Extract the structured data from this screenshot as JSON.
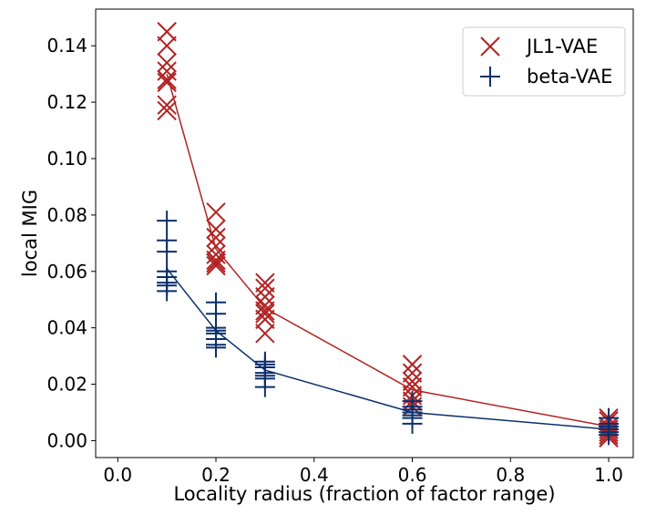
{
  "chart_data": {
    "type": "scatter",
    "xlabel": "Locality radius (fraction of factor range)",
    "ylabel": "local MIG",
    "xlim": [
      -0.045,
      1.05
    ],
    "ylim": [
      -0.006,
      0.153
    ],
    "xticks": [
      0.0,
      0.2,
      0.4,
      0.6,
      0.8,
      1.0
    ],
    "xtick_labels": [
      "0.0",
      "0.2",
      "0.4",
      "0.6",
      "0.8",
      "1.0"
    ],
    "yticks": [
      0.0,
      0.02,
      0.04,
      0.06,
      0.08,
      0.1,
      0.12,
      0.14
    ],
    "ytick_labels": [
      "0.00",
      "0.02",
      "0.04",
      "0.06",
      "0.08",
      "0.10",
      "0.12",
      "0.14"
    ],
    "grid": false,
    "legend_position": "top-right",
    "series": [
      {
        "name": "JL1-VAE",
        "color": "#b22222",
        "marker": "x",
        "mean_line": [
          {
            "x": 0.1,
            "y": 0.13
          },
          {
            "x": 0.2,
            "y": 0.068
          },
          {
            "x": 0.3,
            "y": 0.047
          },
          {
            "x": 0.6,
            "y": 0.018
          },
          {
            "x": 1.0,
            "y": 0.005
          }
        ],
        "points": [
          {
            "x": 0.1,
            "y": [
              0.145,
              0.14,
              0.134,
              0.131,
              0.128,
              0.127,
              0.119,
              0.117
            ]
          },
          {
            "x": 0.2,
            "y": [
              0.081,
              0.075,
              0.072,
              0.069,
              0.066,
              0.064,
              0.063,
              0.062
            ]
          },
          {
            "x": 0.3,
            "y": [
              0.056,
              0.054,
              0.051,
              0.048,
              0.046,
              0.045,
              0.043,
              0.038
            ]
          },
          {
            "x": 0.6,
            "y": [
              0.027,
              0.024,
              0.021,
              0.019,
              0.016,
              0.014,
              0.012
            ]
          },
          {
            "x": 1.0,
            "y": [
              0.008,
              0.007,
              0.005,
              0.004,
              0.003,
              0.002,
              0.001
            ]
          }
        ]
      },
      {
        "name": "beta-VAE",
        "color": "#0b2f6b",
        "marker": "+",
        "mean_line": [
          {
            "x": 0.1,
            "y": 0.061
          },
          {
            "x": 0.2,
            "y": 0.039
          },
          {
            "x": 0.3,
            "y": 0.025
          },
          {
            "x": 0.6,
            "y": 0.01
          },
          {
            "x": 1.0,
            "y": 0.004
          }
        ],
        "points": [
          {
            "x": 0.1,
            "y": [
              0.078,
              0.071,
              0.067,
              0.06,
              0.058,
              0.056,
              0.055,
              0.053
            ]
          },
          {
            "x": 0.2,
            "y": [
              0.049,
              0.045,
              0.04,
              0.039,
              0.038,
              0.036,
              0.034,
              0.033
            ]
          },
          {
            "x": 0.3,
            "y": [
              0.028,
              0.027,
              0.026,
              0.024,
              0.023,
              0.022,
              0.019
            ]
          },
          {
            "x": 0.6,
            "y": [
              0.014,
              0.012,
              0.011,
              0.01,
              0.009,
              0.008,
              0.006
            ]
          },
          {
            "x": 1.0,
            "y": [
              0.008,
              0.006,
              0.005,
              0.004,
              0.003,
              0.002
            ]
          }
        ]
      }
    ]
  }
}
